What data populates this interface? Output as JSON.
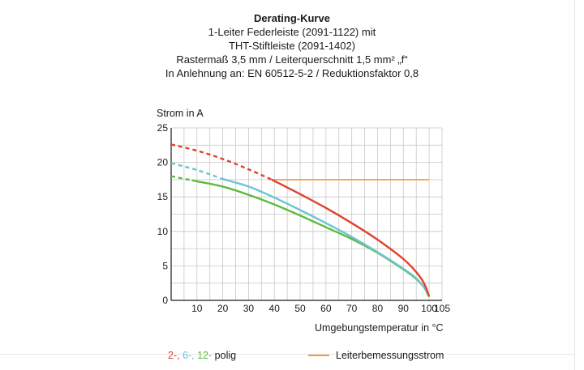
{
  "chart_data": {
    "type": "line",
    "title_lines": [
      "Derating-Kurve",
      "1-Leiter Federleiste (2091-1122) mit",
      "THT-Stiftleiste (2091-1402)",
      "Rastermaß 3,5 mm / Leiterquerschnitt 1,5 mm² „f“",
      "In Anlehnung an: EN 60512-5-2 / Reduktionsfaktor 0,8"
    ],
    "ylabel": "Strom in A",
    "xlabel": "Umgebungstemperatur in °C",
    "xlim": [
      0,
      105
    ],
    "ylim": [
      0,
      25
    ],
    "x_ticks": [
      10,
      20,
      30,
      40,
      50,
      60,
      70,
      80,
      90,
      100,
      105
    ],
    "x_tick_labels": [
      "10",
      "20",
      "30",
      "40",
      "50",
      "60",
      "70",
      "80",
      "90",
      "100",
      "105"
    ],
    "y_ticks": [
      0,
      5,
      10,
      15,
      20,
      25
    ],
    "y_tick_labels": [
      "0",
      "5",
      "10",
      "15",
      "20",
      "25"
    ],
    "grid": true,
    "series": [
      {
        "color": "#e2412d",
        "dashed_points": [
          [
            0,
            22.6
          ],
          [
            10,
            21.7
          ],
          [
            20,
            20.5
          ],
          [
            30,
            19.0
          ],
          [
            39,
            17.5
          ]
        ],
        "solid_points": [
          [
            39,
            17.5
          ],
          [
            50,
            15.4
          ],
          [
            60,
            13.4
          ],
          [
            70,
            11.2
          ],
          [
            80,
            8.8
          ],
          [
            90,
            6.0
          ],
          [
            95,
            4.1
          ],
          [
            98,
            2.5
          ],
          [
            100,
            0.6
          ]
        ]
      },
      {
        "color": "#6cc4d0",
        "dashed_points": [
          [
            0,
            19.9
          ],
          [
            10,
            18.9
          ],
          [
            20,
            17.6
          ]
        ],
        "solid_points": [
          [
            20,
            17.6
          ],
          [
            30,
            16.5
          ],
          [
            40,
            14.9
          ],
          [
            50,
            13.1
          ],
          [
            60,
            11.2
          ],
          [
            70,
            9.2
          ],
          [
            80,
            7.0
          ],
          [
            90,
            4.6
          ],
          [
            95,
            3.2
          ],
          [
            98,
            1.9
          ],
          [
            100,
            0.6
          ]
        ]
      },
      {
        "color": "#5bbb3c",
        "dashed_points": [
          [
            0,
            18.0
          ],
          [
            8,
            17.4
          ]
        ],
        "solid_points": [
          [
            8,
            17.4
          ],
          [
            20,
            16.5
          ],
          [
            30,
            15.3
          ],
          [
            40,
            13.9
          ],
          [
            50,
            12.3
          ],
          [
            60,
            10.6
          ],
          [
            70,
            8.9
          ],
          [
            80,
            6.9
          ],
          [
            90,
            4.5
          ],
          [
            95,
            3.1
          ],
          [
            98,
            1.9
          ],
          [
            100,
            0.5
          ]
        ]
      },
      {
        "name": "Leiterbemessungsstrom",
        "color": "#f39c36",
        "solid_points": [
          [
            39,
            17.5
          ],
          [
            100,
            17.5
          ]
        ]
      }
    ],
    "legend": {
      "placement": "bottom",
      "poles_parts": [
        {
          "text": "2-, ",
          "color": "#e2412d"
        },
        {
          "text": "6-, ",
          "color": "#6cc4d0"
        },
        {
          "text": "12- ",
          "color": "#5bbb3c"
        },
        {
          "text": "polig",
          "color": "#1a1a1a"
        }
      ],
      "rated_current_label": "Leiterbemessungsstrom",
      "rated_current_color": "#f39c36"
    }
  }
}
